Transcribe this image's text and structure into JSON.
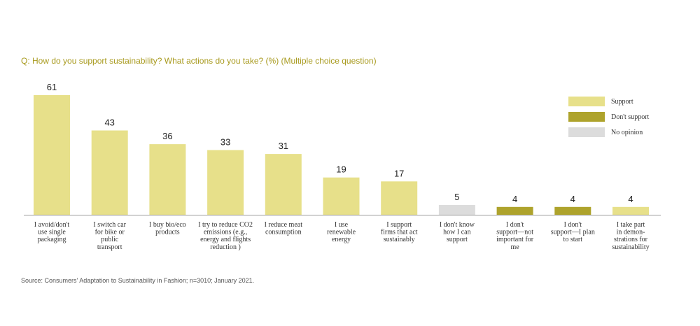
{
  "question": "Q: How do you support sustainability? What actions do you take? (%) (Multiple choice question)",
  "source": "Source: Consumers' Adaptation to Sustainability in Fashion; n=3010; January 2021.",
  "colors": {
    "support": "#e7e08a",
    "dont_support": "#aea32c",
    "no_opinion": "#dcdcdc",
    "axis": "#9a9a9a"
  },
  "chart_data": {
    "type": "bar",
    "title": "Q: How do you support sustainability? What actions do you take? (%) (Multiple choice question)",
    "xlabel": "",
    "ylabel": "",
    "ylim": [
      0,
      61
    ],
    "categories": [
      [
        "I avoid/don't",
        "use single",
        "packaging"
      ],
      [
        "I switch car",
        "for bike or",
        "public",
        "transport"
      ],
      [
        "I buy bio/eco",
        "products"
      ],
      [
        "I try to reduce CO2",
        "emissions (e.g.,",
        "energy and flights",
        "reduction )"
      ],
      [
        "I reduce meat",
        "consumption"
      ],
      [
        "I use",
        "renewable",
        "energy"
      ],
      [
        "I support",
        "firms that act",
        "sustainably"
      ],
      [
        "I don't know",
        "how I can",
        "support"
      ],
      [
        "I don't",
        "support—not",
        "important for",
        "me"
      ],
      [
        "I don't",
        "support—I plan",
        "to start"
      ],
      [
        "I take part",
        "in demon-",
        "strations for",
        "sustainability"
      ]
    ],
    "values": [
      61,
      43,
      36,
      33,
      31,
      19,
      17,
      5,
      4,
      4,
      4
    ],
    "groups": [
      "support",
      "support",
      "support",
      "support",
      "support",
      "support",
      "support",
      "no_opinion",
      "dont_support",
      "dont_support",
      "support"
    ],
    "legend": [
      {
        "key": "support",
        "label": "Support"
      },
      {
        "key": "dont_support",
        "label": "Don't support"
      },
      {
        "key": "no_opinion",
        "label": "No opinion"
      }
    ],
    "legend_position": "top-right",
    "grid": false
  }
}
